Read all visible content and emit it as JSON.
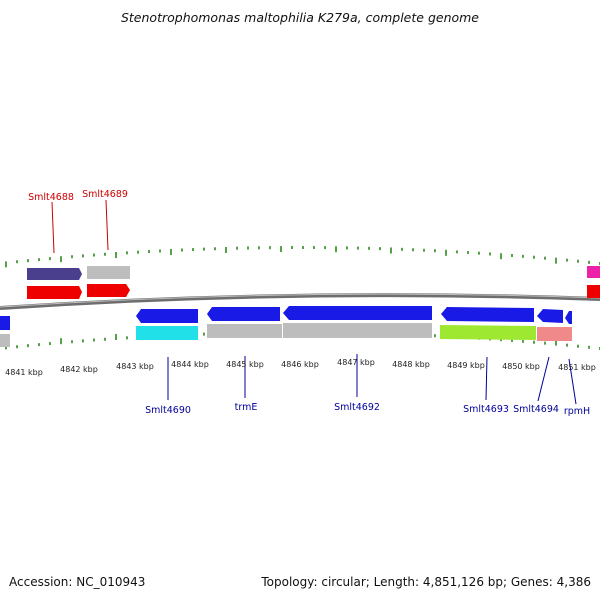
{
  "title": "Stenotrophomonas maltophilia K279a, complete genome",
  "footer": {
    "accession": "Accession: NC_010943",
    "summary": "Topology: circular; Length: 4,851,126 bp; Genes: 4,386"
  },
  "colors": {
    "tick": "#2a8a1a",
    "backbone": "#6e6e6e",
    "label_top": "#cc0000",
    "label_bottom": "#000099",
    "blue": "#1a1ae6",
    "gray": "#bdbdbd",
    "red": "#ee0000",
    "purple": "#4a3f8c",
    "cyan": "#22e0e8",
    "lime": "#9ee832",
    "salmon": "#f08a8a",
    "magenta": "#ee22aa"
  },
  "scale": {
    "unit": "kbp",
    "tick_labels": [
      "4841 kbp",
      "4842 kbp",
      "4843 kbp",
      "4844 kbp",
      "4845 kbp",
      "4846 kbp",
      "4847 kbp",
      "4848 kbp",
      "4849 kbp",
      "4850 kbp",
      "4851 kbp"
    ]
  },
  "genes_top": [
    {
      "label": "Smlt4688",
      "color": "red"
    },
    {
      "label": "Smlt4689",
      "color": "red"
    }
  ],
  "genes_bottom": [
    {
      "label": "Smlt4690",
      "color": "blue"
    },
    {
      "label": "trmE",
      "color": "blue"
    },
    {
      "label": "Smlt4692",
      "color": "blue"
    },
    {
      "label": "Smlt4693",
      "color": "blue"
    },
    {
      "label": "Smlt4694",
      "color": "blue"
    },
    {
      "label": "rpmH",
      "color": "blue"
    }
  ]
}
